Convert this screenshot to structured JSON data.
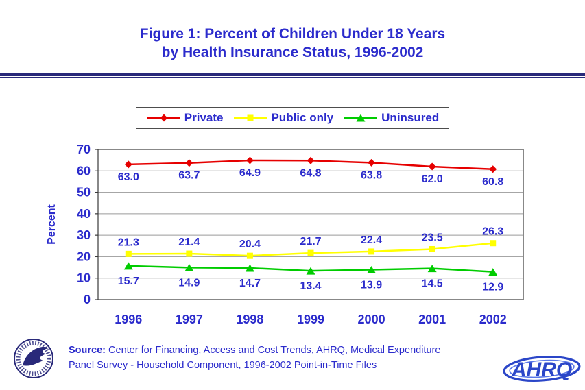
{
  "title": {
    "line1": "Figure 1: Percent of Children Under 18 Years",
    "line2": "by Health Insurance Status, 1996-2002"
  },
  "chart_data": {
    "type": "line",
    "categories": [
      "1996",
      "1997",
      "1998",
      "1999",
      "2000",
      "2001",
      "2002"
    ],
    "series": [
      {
        "name": "Private",
        "marker": "diamond",
        "color": "#e60000",
        "label_dy": 23,
        "values": [
          63.0,
          63.7,
          64.9,
          64.8,
          63.8,
          62.0,
          60.8
        ]
      },
      {
        "name": "Public only",
        "marker": "square",
        "color": "#ffff00",
        "label_dy": -12,
        "values": [
          21.3,
          21.4,
          20.4,
          21.7,
          22.4,
          23.5,
          26.3
        ]
      },
      {
        "name": "Uninsured",
        "marker": "triangle",
        "color": "#00cc00",
        "label_dy": 27,
        "values": [
          15.7,
          14.9,
          14.7,
          13.4,
          13.9,
          14.5,
          12.9
        ]
      }
    ],
    "ylabel": "Percent",
    "xlabel": "",
    "ylim": [
      0,
      70
    ],
    "ytick_step": 10,
    "grid": true,
    "legend_position": "top-center"
  },
  "source": {
    "label": "Source:",
    "line1_rest": "Center for Financing, Access and Cost Trends, AHRQ, Medical Expenditure",
    "line2": "Panel Survey - Household Component, 1996-2002 Point-in-Time Files"
  },
  "logos": {
    "ahrq_text": "AHRQ",
    "hhs_icon": "hhs-eagle-seal"
  },
  "colors": {
    "text_blue": "#2b2bcc",
    "divider_navy": "#29297a",
    "grid_gray": "#9a9a9a",
    "axis_black": "#3a3a3a"
  }
}
